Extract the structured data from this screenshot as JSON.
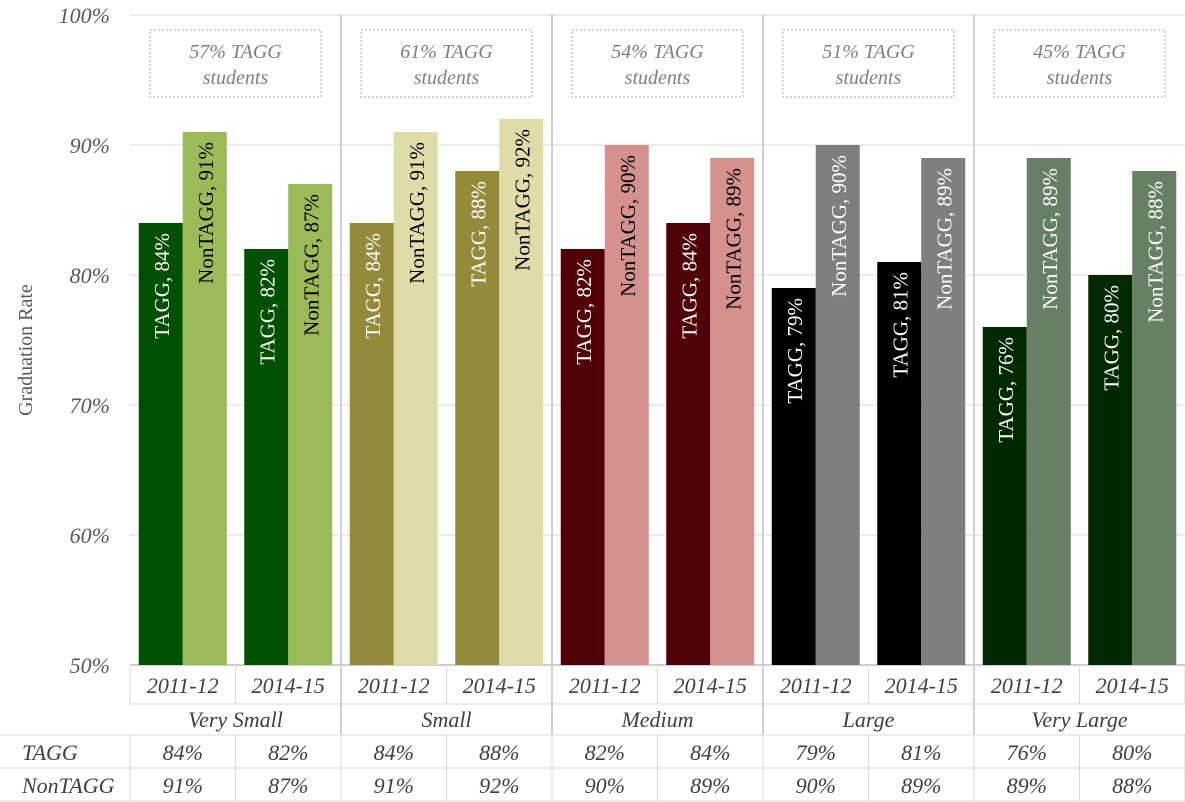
{
  "chart_data": {
    "type": "bar",
    "ylabel": "Graduation Rate",
    "ylim": [
      50,
      100
    ],
    "y_ticks": [
      50,
      60,
      70,
      80,
      90,
      100
    ],
    "y_tick_labels": [
      "50%",
      "60%",
      "70%",
      "80%",
      "90%",
      "100%"
    ],
    "grid": true,
    "years": [
      "2011-12",
      "2014-15"
    ],
    "series_names": [
      "TAGG",
      "NonTAGG"
    ],
    "groups": [
      {
        "name": "Very Small",
        "share_label": "57% TAGG students",
        "colors": {
          "TAGG": "#005000",
          "NonTAGG": "#9bbb59"
        },
        "TAGG": [
          84,
          82
        ],
        "NonTAGG": [
          91,
          87
        ],
        "bar_labels": {
          "TAGG": [
            "TAGG, 84%",
            "TAGG, 82%"
          ],
          "NonTAGG": [
            "NonTAGG, 91%",
            "NonTAGG, 87%"
          ]
        },
        "table": {
          "TAGG": [
            "84%",
            "82%"
          ],
          "NonTAGG": [
            "91%",
            "87%"
          ]
        }
      },
      {
        "name": "Small",
        "share_label": "61% TAGG students",
        "colors": {
          "TAGG": "#948a3a",
          "NonTAGG": "#e0dcaa"
        },
        "TAGG": [
          84,
          88
        ],
        "NonTAGG": [
          91,
          92
        ],
        "bar_labels": {
          "TAGG": [
            "TAGG, 84%",
            "TAGG, 88%"
          ],
          "NonTAGG": [
            "NonTAGG, 91%",
            "NonTAGG, 92%"
          ]
        },
        "table": {
          "TAGG": [
            "84%",
            "88%"
          ],
          "NonTAGG": [
            "91%",
            "92%"
          ]
        }
      },
      {
        "name": "Medium",
        "share_label": "54% TAGG students",
        "colors": {
          "TAGG": "#520008",
          "NonTAGG": "#d4918e"
        },
        "TAGG": [
          82,
          84
        ],
        "NonTAGG": [
          90,
          89
        ],
        "bar_labels": {
          "TAGG": [
            "TAGG, 82%",
            "TAGG, 84%"
          ],
          "NonTAGG": [
            "NonTAGG, 90%",
            "NonTAGG, 89%"
          ]
        },
        "table": {
          "TAGG": [
            "82%",
            "84%"
          ],
          "NonTAGG": [
            "90%",
            "89%"
          ]
        }
      },
      {
        "name": "Large",
        "share_label": "51% TAGG students",
        "colors": {
          "TAGG": "#000000",
          "NonTAGG": "#7f7f7f"
        },
        "TAGG": [
          79,
          81
        ],
        "NonTAGG": [
          90,
          89
        ],
        "bar_labels": {
          "TAGG": [
            "TAGG, 79%",
            "TAGG, 81%"
          ],
          "NonTAGG": [
            "NonTAGG, 90%",
            "NonTAGG, 89%"
          ]
        },
        "table": {
          "TAGG": [
            "79%",
            "81%"
          ],
          "NonTAGG": [
            "90%",
            "89%"
          ]
        }
      },
      {
        "name": "Very Large",
        "share_label": "45% TAGG students",
        "colors": {
          "TAGG": "#002900",
          "NonTAGG": "#667f65"
        },
        "TAGG": [
          76,
          80
        ],
        "NonTAGG": [
          89,
          88
        ],
        "bar_labels": {
          "TAGG": [
            "TAGG, 76%",
            "TAGG, 80%"
          ],
          "NonTAGG": [
            "NonTAGG, 89%",
            "NonTAGG, 88%"
          ]
        },
        "table": {
          "TAGG": [
            "76%",
            "80%"
          ],
          "NonTAGG": [
            "89%",
            "88%"
          ]
        }
      }
    ]
  }
}
